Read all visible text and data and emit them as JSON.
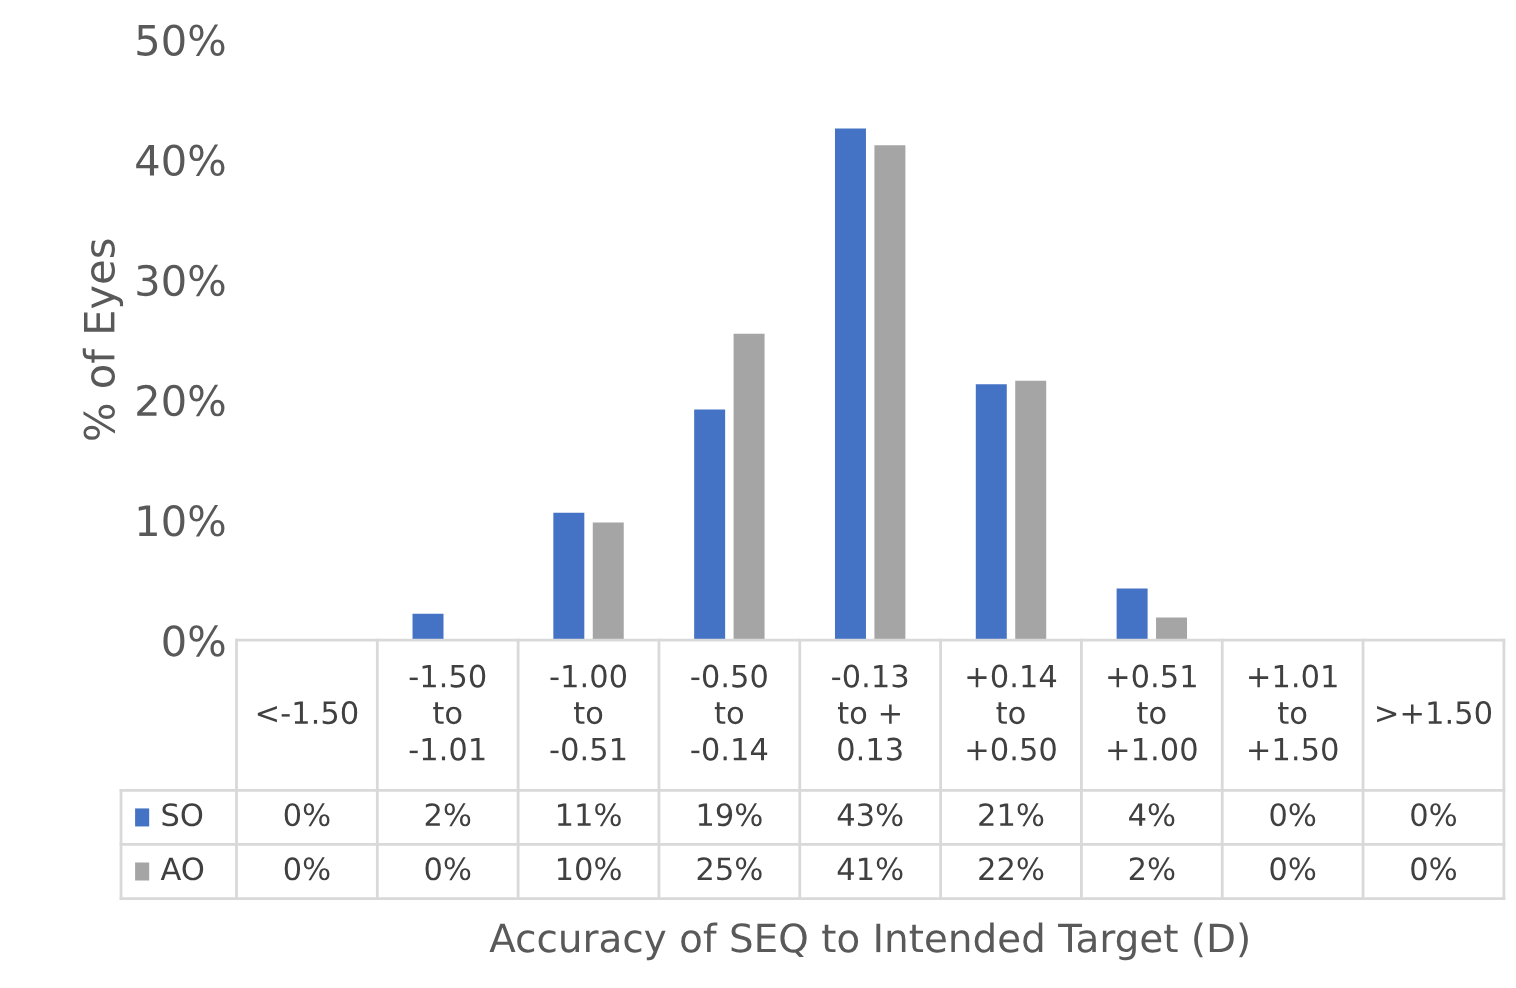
{
  "chart_data": {
    "type": "bar",
    "xlabel": "Accuracy of SEQ to Intended Target (D)",
    "ylabel": "% of Eyes",
    "categories": [
      "<-1.50",
      "-1.50 to -1.01",
      "-1.00 to -0.51",
      "-0.50 to -0.14",
      "-0.13 to + 0.13",
      "+0.14 to +0.50",
      "+0.51 to +1.00",
      "+1.01 to +1.50",
      ">+1.50"
    ],
    "series": [
      {
        "name": "SO",
        "color": "#4472c4",
        "values": [
          0,
          2.2,
          10.6,
          19.2,
          42.6,
          21.3,
          4.3,
          0,
          0
        ],
        "value_labels": [
          "0%",
          "2%",
          "11%",
          "19%",
          "43%",
          "21%",
          "4%",
          "0%",
          "0%"
        ]
      },
      {
        "name": "AO",
        "color": "#a5a5a5",
        "values": [
          0,
          0,
          9.8,
          25.5,
          41.2,
          21.6,
          1.9,
          0,
          0
        ],
        "value_labels": [
          "0%",
          "0%",
          "10%",
          "25%",
          "41%",
          "22%",
          "2%",
          "0%",
          "0%"
        ]
      }
    ],
    "ylim": [
      0,
      50
    ],
    "yticks": [
      {
        "value": 0,
        "label": "0%"
      },
      {
        "value": 10,
        "label": "10%"
      },
      {
        "value": 20,
        "label": "20%"
      },
      {
        "value": 30,
        "label": "30%"
      },
      {
        "value": 40,
        "label": "40%"
      },
      {
        "value": 50,
        "label": "50%"
      }
    ],
    "grid": false,
    "legend": "bottom left"
  }
}
